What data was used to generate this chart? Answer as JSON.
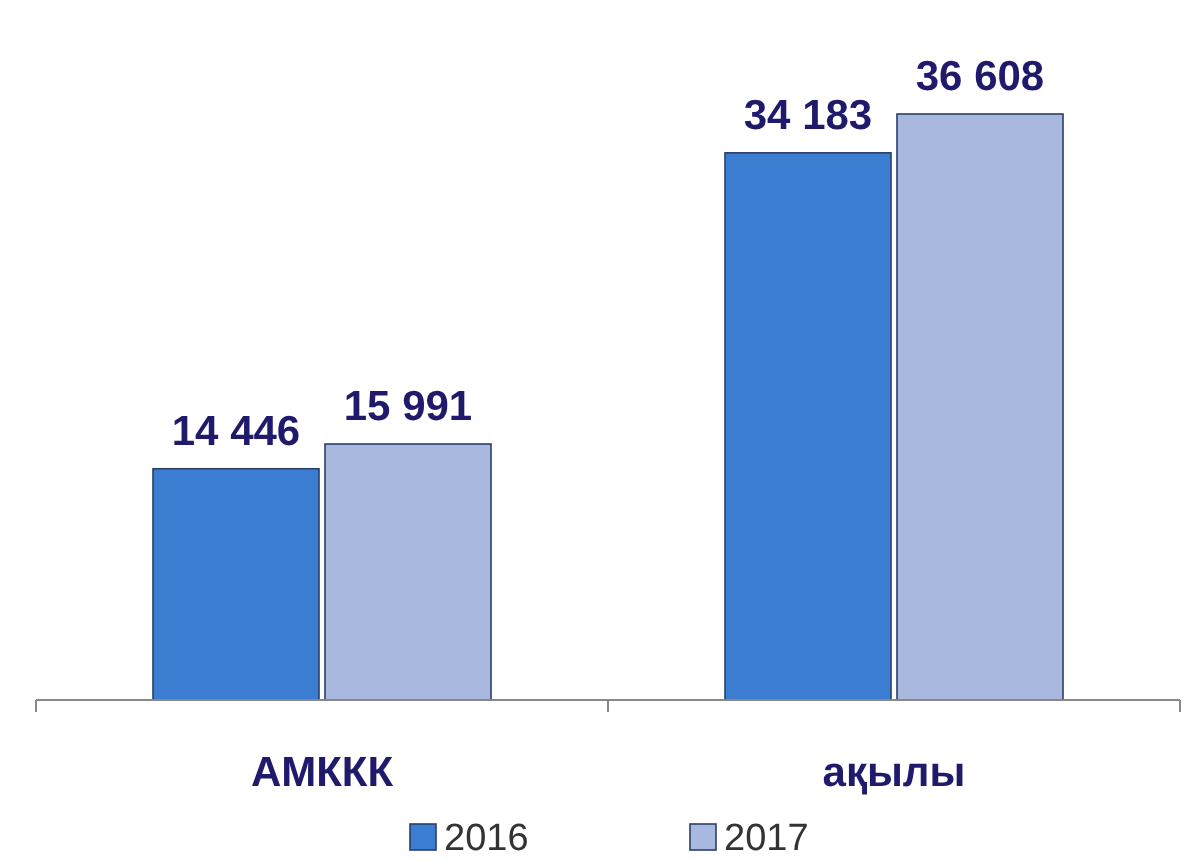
{
  "chart_data": {
    "type": "bar",
    "categories": [
      "АМККК",
      "ақылы"
    ],
    "series": [
      {
        "name": "2016",
        "color": "#3b7dd0",
        "values": [
          14446,
          34183
        ],
        "value_labels": [
          "14 446",
          "34 183"
        ]
      },
      {
        "name": "2017",
        "color": "#a8b8df",
        "values": [
          15991,
          36608
        ],
        "value_labels": [
          "15 991",
          "36 608"
        ]
      }
    ],
    "legend": "bottom"
  }
}
